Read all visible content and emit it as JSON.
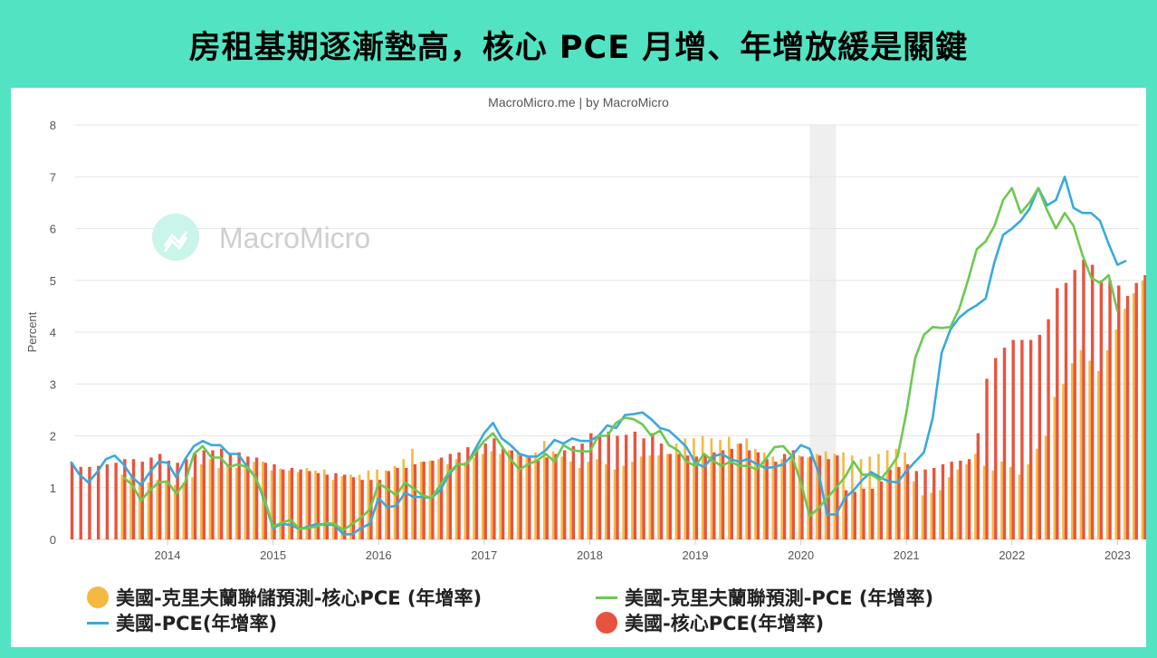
{
  "headline": "房租基期逐漸墊高，核心 PCE 月增、年增放緩是關鍵",
  "source": "MacroMicro.me | by MacroMicro",
  "watermark": "MacroMicro",
  "colors": {
    "background": "#52e3c2",
    "core_pce": "#e8533f",
    "cleveland_core_forecast": "#f5b942",
    "pce": "#3aa9dc",
    "cleveland_pce_forecast": "#6cc94f",
    "recession_band": "#efefef"
  },
  "chart_data": {
    "type": "bar+line",
    "title": "",
    "xlabel": "",
    "ylabel": "Percent",
    "ylim": [
      0,
      8
    ],
    "yticks": [
      0,
      1,
      2,
      3,
      4,
      5,
      6,
      7,
      8
    ],
    "xticks": [
      "2014",
      "2015",
      "2016",
      "2017",
      "2018",
      "2019",
      "2020",
      "2021",
      "2022",
      "2023"
    ],
    "grid": true,
    "legend_position": "bottom",
    "shaded_region": {
      "start": "2020-02",
      "end": "2020-04"
    },
    "frequency": "monthly",
    "series": [
      {
        "name": "美國-克里夫蘭聯儲預測-核心PCE (年增率)",
        "type": "bar",
        "color": "#f5b942",
        "start": "2013-08",
        "values": [
          1.25,
          1.2,
          1.1,
          1.1,
          1.15,
          1.1,
          1.05,
          1.1,
          1.2,
          1.45,
          1.55,
          1.38,
          1.45,
          1.38,
          1.45,
          1.5,
          1.5,
          1.33,
          1.37,
          1.33,
          1.3,
          1.38,
          1.33,
          1.35,
          1.15,
          1.22,
          1.25,
          1.25,
          1.33,
          1.35,
          1.33,
          1.42,
          1.55,
          1.75,
          1.5,
          1.52,
          1.55,
          1.45,
          1.55,
          1.5,
          1.58,
          1.65,
          1.7,
          1.65,
          1.72,
          1.72,
          1.6,
          1.68,
          1.9,
          1.7,
          1.6,
          1.5,
          1.38,
          1.5,
          1.55,
          1.45,
          1.35,
          1.42,
          1.5,
          1.6,
          1.62,
          1.62,
          1.65,
          1.85,
          1.95,
          1.95,
          2.0,
          1.95,
          1.92,
          1.98,
          1.85,
          1.95,
          1.75,
          1.68,
          1.6,
          1.55,
          1.6,
          1.62,
          1.58,
          1.65,
          1.7,
          1.65,
          1.68,
          1.62,
          1.55,
          1.6,
          1.65,
          1.72,
          1.75,
          1.68,
          1.12,
          0.85,
          0.9,
          0.95,
          1.2,
          1.35,
          1.45,
          1.65,
          1.42,
          1.33,
          1.5,
          1.4,
          1.25,
          1.45,
          1.75,
          2.0,
          2.75,
          3.0,
          3.4,
          3.65,
          3.45,
          3.25,
          3.65,
          4.05,
          4.45,
          4.75,
          5.0,
          5.1,
          5.5,
          5.2,
          5.05,
          4.85,
          4.75,
          4.75,
          4.95,
          5.1,
          4.85,
          4.65,
          4.3,
          4.45,
          4.35,
          4.25,
          4.65,
          4.7,
          4.75
        ]
      },
      {
        "name": "美國-克里夫蘭聯儲預測-PCE (年增率)",
        "type": "line",
        "color": "#6cc94f",
        "start": "2013-08",
        "values": [
          1.2,
          1.05,
          0.75,
          0.95,
          1.1,
          1.12,
          0.88,
          1.1,
          1.65,
          1.8,
          1.58,
          1.58,
          1.4,
          1.45,
          1.4,
          1.2,
          0.8,
          0.25,
          0.32,
          0.38,
          0.2,
          0.22,
          0.25,
          0.32,
          0.3,
          0.18,
          0.3,
          0.42,
          0.58,
          1.08,
          0.98,
          0.85,
          1.1,
          0.98,
          0.85,
          0.8,
          1.05,
          1.3,
          1.45,
          1.45,
          1.68,
          1.9,
          2.05,
          1.8,
          1.55,
          1.35,
          1.45,
          1.52,
          1.65,
          1.5,
          1.82,
          1.72,
          1.7,
          1.7,
          2.0,
          2.0,
          2.25,
          2.35,
          2.32,
          2.22,
          2.0,
          2.1,
          1.82,
          1.72,
          1.5,
          1.42,
          1.65,
          1.52,
          1.42,
          1.5,
          1.42,
          1.42,
          1.35,
          1.55,
          1.78,
          1.8,
          1.6,
          1.1,
          0.45,
          0.6,
          0.8,
          1.0,
          1.2,
          1.5,
          1.25,
          1.25,
          1.15,
          1.35,
          1.6,
          2.45,
          3.5,
          3.95,
          4.1,
          4.08,
          4.1,
          4.45,
          5.0,
          5.6,
          5.75,
          6.05,
          6.55,
          6.78,
          6.3,
          6.5,
          6.78,
          6.35,
          6.0,
          6.3,
          6.05,
          5.5,
          5.05,
          4.95,
          5.1,
          4.4
        ]
      },
      {
        "name": "美國-PCE(年增率)",
        "type": "line",
        "color": "#3aa9dc",
        "start": "2013-02",
        "values": [
          1.5,
          1.25,
          1.1,
          1.3,
          1.55,
          1.62,
          1.45,
          1.2,
          1.05,
          1.3,
          1.5,
          1.48,
          1.2,
          1.55,
          1.8,
          1.9,
          1.82,
          1.82,
          1.65,
          1.65,
          1.42,
          1.2,
          0.75,
          0.22,
          0.3,
          0.28,
          0.2,
          0.25,
          0.3,
          0.28,
          0.28,
          0.1,
          0.1,
          0.22,
          0.3,
          0.8,
          0.62,
          0.65,
          0.9,
          0.82,
          0.82,
          0.8,
          0.95,
          1.25,
          1.45,
          1.45,
          1.75,
          2.05,
          2.25,
          1.95,
          1.82,
          1.65,
          1.6,
          1.6,
          1.72,
          1.92,
          1.85,
          1.95,
          1.9,
          1.9,
          2.0,
          2.2,
          2.15,
          2.4,
          2.42,
          2.45,
          2.32,
          2.15,
          2.1,
          1.95,
          1.78,
          1.48,
          1.4,
          1.6,
          1.65,
          1.55,
          1.5,
          1.55,
          1.45,
          1.38,
          1.4,
          1.45,
          1.62,
          1.82,
          1.75,
          1.3,
          0.48,
          0.48,
          0.8,
          0.95,
          1.15,
          1.3,
          1.2,
          1.12,
          1.1,
          1.32,
          1.5,
          1.68,
          2.35,
          3.6,
          4.05,
          4.28,
          4.42,
          4.52,
          4.65,
          5.35,
          5.88,
          6.0,
          6.15,
          6.38,
          6.78,
          6.45,
          6.55,
          7.0,
          6.4,
          6.3,
          6.3,
          6.15,
          5.7,
          5.3,
          5.38
        ]
      },
      {
        "name": "美國-核心PCE(年增率)",
        "type": "bar",
        "color": "#e8533f",
        "start": "2013-02",
        "values": [
          1.48,
          1.4,
          1.4,
          1.42,
          1.45,
          1.48,
          1.55,
          1.55,
          1.5,
          1.58,
          1.65,
          1.52,
          1.48,
          1.55,
          1.65,
          1.72,
          1.72,
          1.75,
          1.65,
          1.68,
          1.6,
          1.58,
          1.48,
          1.45,
          1.35,
          1.38,
          1.35,
          1.32,
          1.28,
          1.25,
          1.28,
          1.25,
          1.2,
          1.15,
          1.15,
          1.15,
          1.32,
          1.38,
          1.38,
          1.45,
          1.5,
          1.52,
          1.58,
          1.65,
          1.68,
          1.78,
          1.75,
          1.85,
          1.95,
          1.75,
          1.72,
          1.62,
          1.58,
          1.52,
          1.58,
          1.65,
          1.72,
          1.8,
          1.85,
          2.05,
          1.98,
          2.08,
          2.0,
          2.02,
          2.08,
          1.95,
          2.05,
          1.85,
          1.65,
          1.65,
          1.62,
          1.6,
          1.62,
          1.68,
          1.72,
          1.75,
          1.85,
          1.72,
          1.68,
          1.55,
          1.5,
          1.65,
          1.72,
          1.6,
          1.6,
          1.62,
          1.55,
          1.62,
          0.95,
          0.92,
          0.98,
          0.98,
          1.12,
          1.35,
          1.4,
          1.45,
          1.32,
          1.35,
          1.38,
          1.45,
          1.5,
          1.52,
          1.55,
          2.05,
          3.1,
          3.5,
          3.7,
          3.85,
          3.85,
          3.85,
          3.95,
          4.25,
          4.85,
          4.95,
          5.2,
          5.4,
          5.3,
          5.0,
          5.0,
          4.9,
          4.7,
          4.95,
          5.1,
          5.05,
          4.75,
          4.6,
          4.7
        ]
      }
    ]
  },
  "legend": {
    "items": [
      {
        "label": "美國-克里夫蘭聯儲預測-核心PCE (年增率)",
        "symbol": "circle",
        "color": "#f5b942"
      },
      {
        "label": "美國-克里夫蘭聯預測-PCE (年增率)",
        "symbol": "line",
        "color": "#6cc94f"
      },
      {
        "label": "美國-PCE(年增率)",
        "symbol": "line",
        "color": "#3aa9dc"
      },
      {
        "label": "美國-核心PCE(年增率)",
        "symbol": "circle",
        "color": "#e8533f"
      }
    ]
  }
}
